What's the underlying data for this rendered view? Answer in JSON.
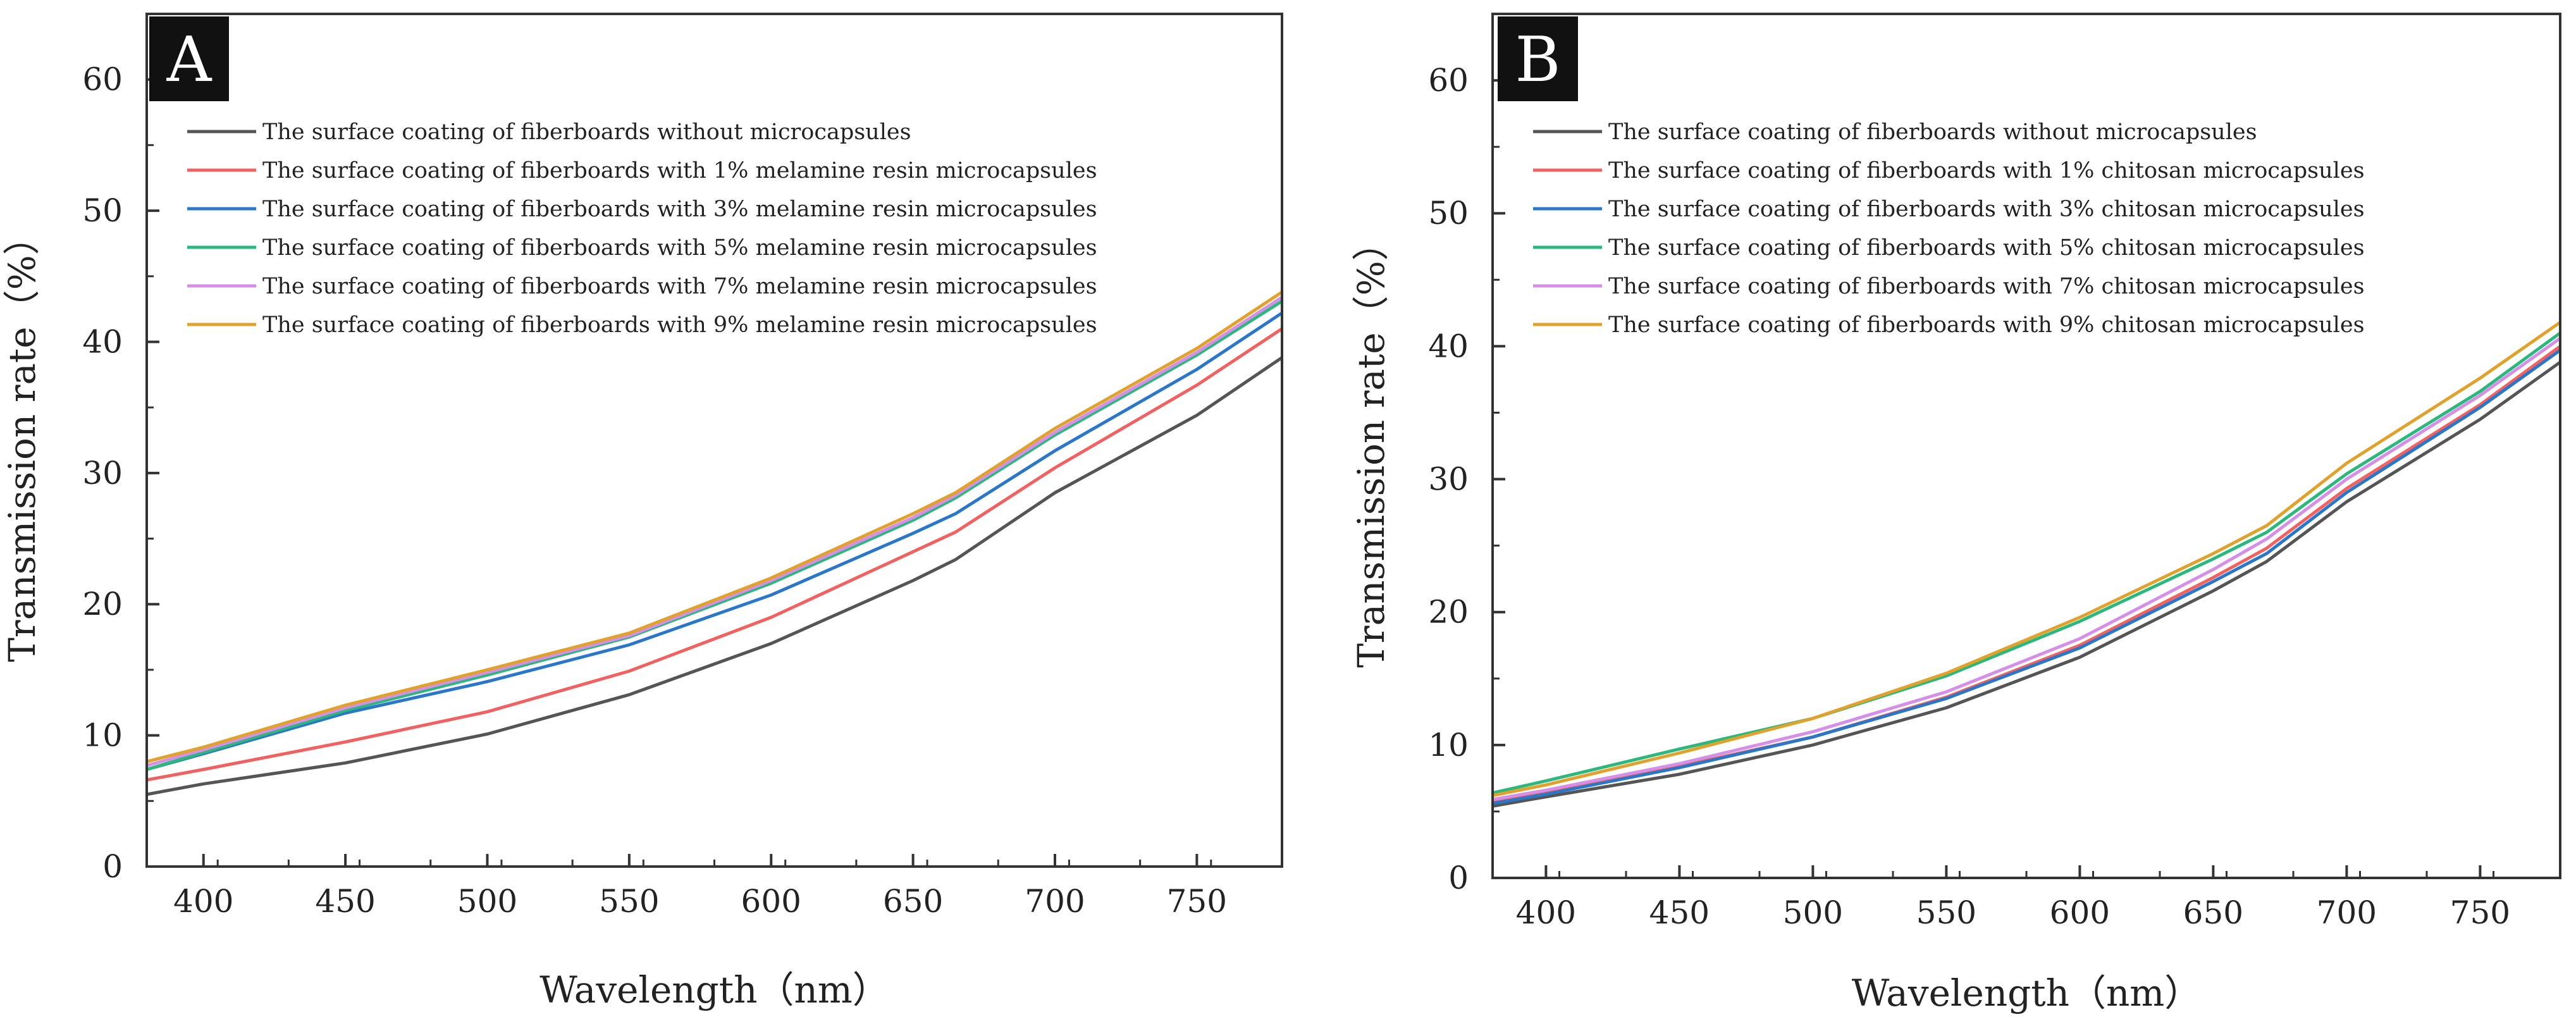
{
  "figure": {
    "background": "#ffffff"
  },
  "chart_data": [
    {
      "type": "line",
      "panel_label": "A",
      "xlabel": "Wavelength（nm）",
      "ylabel": "Transmission rate（%）",
      "xlim": [
        380,
        780
      ],
      "ylim": [
        0,
        65
      ],
      "xticks": [
        400,
        450,
        500,
        550,
        600,
        650,
        700,
        750
      ],
      "yticks": [
        0,
        10,
        20,
        30,
        40,
        50,
        60
      ],
      "grid": false,
      "legend_position": "top-left",
      "series": [
        {
          "name": "The surface coating of fiberboards without microcapsules",
          "color": "#555555",
          "x": [
            380,
            400,
            450,
            500,
            550,
            600,
            650,
            665,
            700,
            750,
            780
          ],
          "y": [
            5.5,
            6.3,
            7.9,
            10.1,
            13.1,
            17.0,
            21.8,
            23.4,
            28.5,
            34.4,
            38.8
          ]
        },
        {
          "name": "The surface coating of fiberboards with 1% melamine resin microcapsules",
          "color": "#f06262",
          "x": [
            380,
            400,
            450,
            500,
            550,
            600,
            650,
            665,
            700,
            750,
            780
          ],
          "y": [
            6.6,
            7.4,
            9.5,
            11.8,
            14.9,
            19.0,
            24.0,
            25.5,
            30.4,
            36.7,
            41.0
          ]
        },
        {
          "name": "The surface coating of fiberboards with 3% melamine resin microcapsules",
          "color": "#2a77c9",
          "x": [
            380,
            400,
            450,
            500,
            550,
            600,
            650,
            665,
            700,
            750,
            780
          ],
          "y": [
            7.4,
            8.6,
            11.7,
            14.1,
            16.9,
            20.7,
            25.4,
            26.9,
            31.7,
            37.9,
            42.2
          ]
        },
        {
          "name": "The surface coating of fiberboards with 5% melamine resin microcapsules",
          "color": "#2cb87c",
          "x": [
            380,
            400,
            450,
            500,
            550,
            600,
            650,
            665,
            700,
            750,
            780
          ],
          "y": [
            7.4,
            8.7,
            11.9,
            14.6,
            17.5,
            21.6,
            26.4,
            28.1,
            32.9,
            39.0,
            43.1
          ]
        },
        {
          "name": "The surface coating of fiberboards with 7% melamine resin microcapsules",
          "color": "#d58fe6",
          "x": [
            380,
            400,
            450,
            500,
            550,
            600,
            650,
            665,
            700,
            750,
            780
          ],
          "y": [
            7.7,
            8.9,
            12.1,
            14.8,
            17.6,
            21.8,
            26.6,
            28.3,
            33.1,
            39.2,
            43.4
          ]
        },
        {
          "name": "The surface coating of fiberboards with 9% melamine resin microcapsules",
          "color": "#e0a22c",
          "x": [
            380,
            400,
            450,
            500,
            550,
            600,
            650,
            665,
            700,
            750,
            780
          ],
          "y": [
            8.0,
            9.1,
            12.3,
            15.0,
            17.8,
            22.0,
            26.9,
            28.5,
            33.4,
            39.5,
            43.8
          ]
        }
      ]
    },
    {
      "type": "line",
      "panel_label": "B",
      "xlabel": "Wavelength（nm）",
      "ylabel": "Transmission rate（%）",
      "xlim": [
        380,
        780
      ],
      "ylim": [
        0,
        65
      ],
      "xticks": [
        400,
        450,
        500,
        550,
        600,
        650,
        700,
        750
      ],
      "yticks": [
        0,
        10,
        20,
        30,
        40,
        50,
        60
      ],
      "grid": false,
      "legend_position": "top-left",
      "series": [
        {
          "name": "The surface coating of fiberboards without microcapsules",
          "color": "#555555",
          "x": [
            380,
            400,
            450,
            500,
            550,
            600,
            650,
            670,
            700,
            750,
            780
          ],
          "y": [
            5.4,
            6.1,
            7.8,
            10.0,
            12.8,
            16.6,
            21.6,
            23.8,
            28.3,
            34.5,
            38.8
          ]
        },
        {
          "name": "The surface coating of fiberboards with 1% chitosan microcapsules",
          "color": "#f06262",
          "x": [
            380,
            400,
            450,
            500,
            550,
            600,
            650,
            670,
            700,
            750,
            780
          ],
          "y": [
            5.8,
            6.5,
            8.4,
            10.6,
            13.6,
            17.5,
            22.6,
            24.8,
            29.3,
            35.6,
            40.0
          ]
        },
        {
          "name": "The surface coating of fiberboards with 3% chitosan microcapsules",
          "color": "#2a77c9",
          "x": [
            380,
            400,
            450,
            500,
            550,
            600,
            650,
            670,
            700,
            750,
            780
          ],
          "y": [
            5.6,
            6.3,
            8.3,
            10.6,
            13.5,
            17.3,
            22.3,
            24.4,
            29.0,
            35.4,
            39.7
          ]
        },
        {
          "name": "The surface coating of fiberboards with 5% chitosan microcapsules",
          "color": "#2cb87c",
          "x": [
            380,
            400,
            450,
            500,
            550,
            600,
            650,
            670,
            700,
            750,
            780
          ],
          "y": [
            6.4,
            7.3,
            9.7,
            12.0,
            15.2,
            19.3,
            24.0,
            26.0,
            30.4,
            36.6,
            41.0
          ]
        },
        {
          "name": "The surface coating of fiberboards with 7% chitosan microcapsules",
          "color": "#d58fe6",
          "x": [
            380,
            400,
            450,
            500,
            550,
            600,
            650,
            670,
            700,
            750,
            780
          ],
          "y": [
            5.9,
            6.6,
            8.6,
            11.0,
            14.0,
            18.0,
            23.2,
            25.5,
            30.0,
            36.3,
            40.6
          ]
        },
        {
          "name": "The surface coating of fiberboards with 9% chitosan microcapsules",
          "color": "#e0a22c",
          "x": [
            380,
            400,
            450,
            500,
            550,
            600,
            650,
            670,
            700,
            750,
            780
          ],
          "y": [
            6.2,
            7.0,
            9.4,
            12.0,
            15.4,
            19.6,
            24.4,
            26.5,
            31.2,
            37.6,
            41.8
          ]
        }
      ]
    }
  ]
}
